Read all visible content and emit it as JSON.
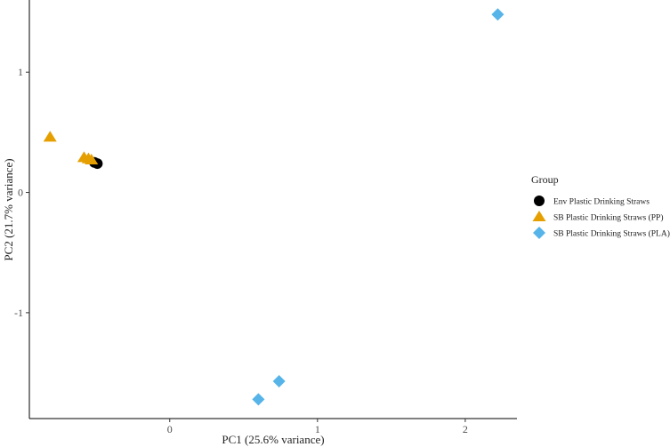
{
  "chart_data": {
    "type": "scatter",
    "xlabel": "PC1 (25.6% variance)",
    "ylabel": "PC2 (21.7% variance)",
    "xlim": [
      -0.95,
      2.35
    ],
    "ylim": [
      -1.88,
      1.6
    ],
    "xticks": [
      0,
      1,
      2
    ],
    "xtick_labels": [
      "0",
      "1",
      "2"
    ],
    "yticks": [
      -1,
      0,
      1
    ],
    "ytick_labels": [
      "-1",
      "0",
      "1"
    ],
    "grid": false,
    "legend": {
      "title": "Group",
      "position": "right"
    },
    "series": [
      {
        "name": "Env Plastic Drinking Straws",
        "marker": "circle",
        "color": "#000000",
        "points": [
          [
            -0.49,
            0.24
          ],
          [
            -0.51,
            0.25
          ]
        ]
      },
      {
        "name": "SB Plastic Drinking Straws (PP)",
        "marker": "triangle",
        "color": "#E69F00",
        "points": [
          [
            -0.81,
            0.46
          ],
          [
            -0.58,
            0.29
          ],
          [
            -0.55,
            0.28
          ],
          [
            -0.53,
            0.27
          ]
        ]
      },
      {
        "name": "SB Plastic Drinking Straws (PLA)",
        "marker": "diamond",
        "color": "#56B4E9",
        "points": [
          [
            2.22,
            1.48
          ],
          [
            0.74,
            -1.57
          ],
          [
            0.6,
            -1.72
          ]
        ]
      }
    ]
  }
}
